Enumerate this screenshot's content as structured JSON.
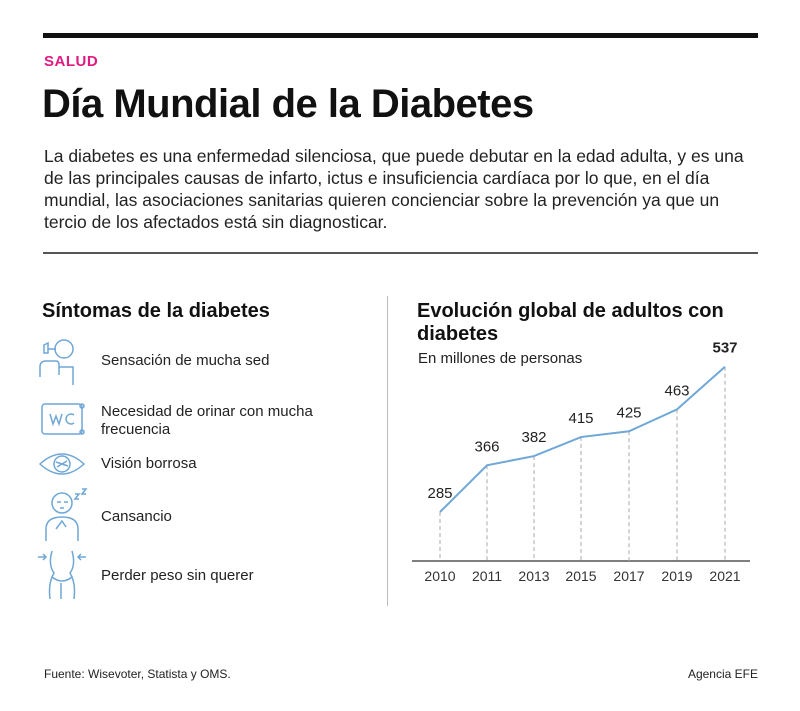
{
  "section": "SALUD",
  "title": "Día Mundial de la Diabetes",
  "intro": "La diabetes es una enfermedad silenciosa, que puede debutar en la edad adulta, y es una de las principales causas de infarto, ictus e insuficiencia cardíaca por lo que, en el día mundial, las asociaciones sanitarias quieren concienciar sobre la prevención ya que un tercio de los afectados está sin diagnosticar.",
  "symptoms": {
    "title": "Síntomas de la diabetes",
    "items": [
      {
        "icon": "thirst-icon",
        "label": "Sensación de mucha sed"
      },
      {
        "icon": "wc-icon",
        "label": "Necesidad de orinar con mucha frecuencia"
      },
      {
        "icon": "eye-icon",
        "label": "Visión borrosa"
      },
      {
        "icon": "tired-icon",
        "label": "Cansancio"
      },
      {
        "icon": "weight-loss-icon",
        "label": "Perder peso sin querer"
      }
    ]
  },
  "chart": {
    "title": "Evolución global de adultos con diabetes",
    "subtitle": "En millones de personas"
  },
  "chart_data": {
    "type": "line",
    "title": "Evolución global de adultos con diabetes",
    "ylabel": "En millones de personas",
    "x": [
      "2010",
      "2011",
      "2013",
      "2015",
      "2017",
      "2019",
      "2021"
    ],
    "series": [
      {
        "name": "Adultos con diabetes",
        "values": [
          285,
          366,
          382,
          415,
          425,
          463,
          537
        ]
      }
    ],
    "ylim": [
      200,
      540
    ],
    "grid": false,
    "highlight_last": true,
    "line_color": "#6fa7d6"
  },
  "footer": {
    "source": "Fuente: Wisevoter, Statista y OMS.",
    "credit": "Agencia EFE"
  },
  "colors": {
    "accent": "#e2197e",
    "icon": "#6fa7d6"
  }
}
